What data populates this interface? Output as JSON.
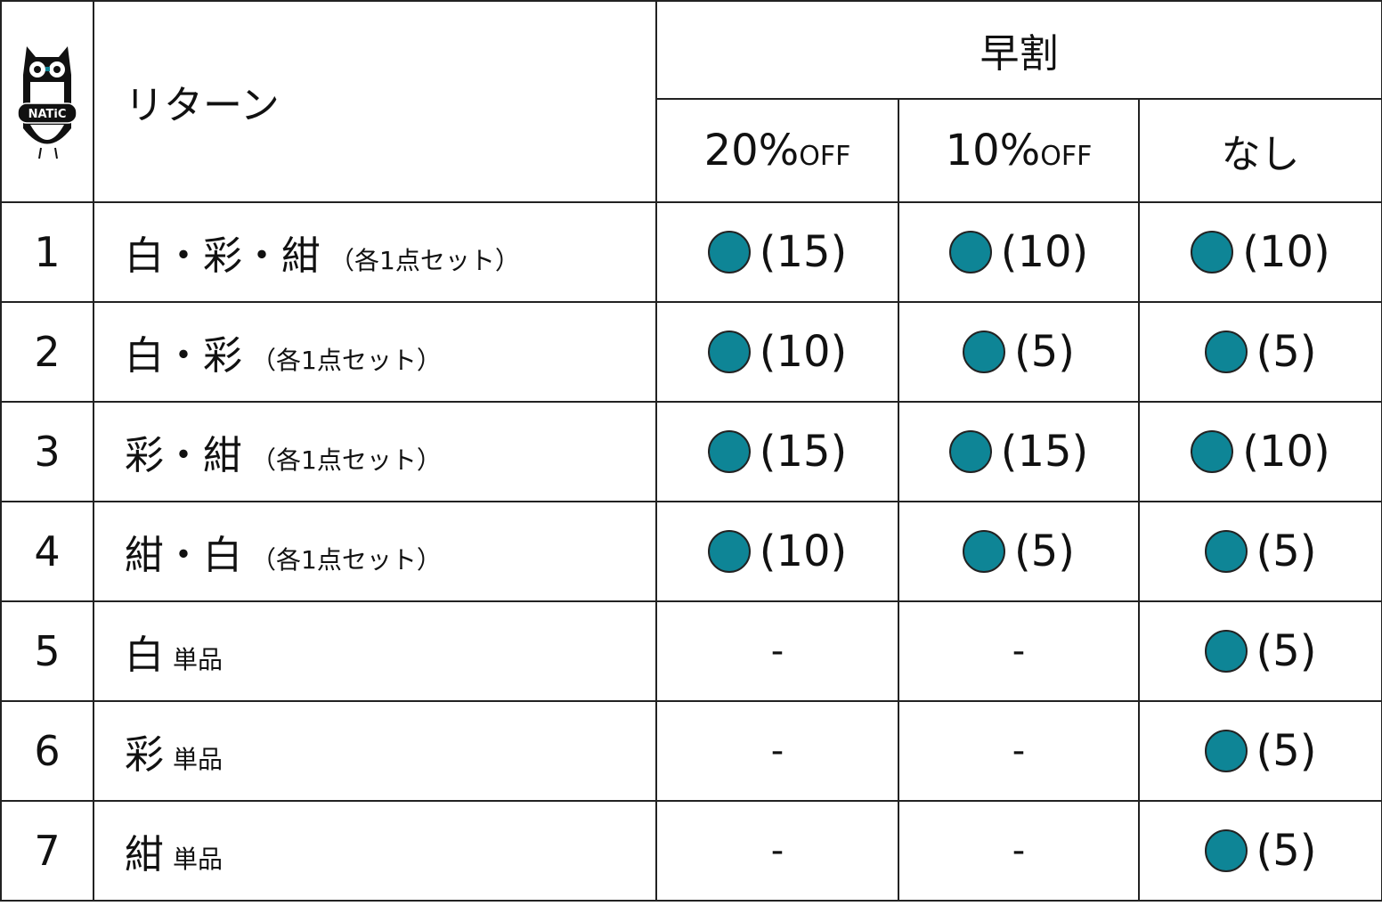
{
  "logo": {
    "text": "NATiC",
    "icon": "owl-logo"
  },
  "header": {
    "return_label": "リターン",
    "group_label": "早割",
    "columns": [
      {
        "pct": "20%",
        "suffix": "OFF"
      },
      {
        "pct": "10%",
        "suffix": "OFF"
      },
      {
        "pct": "なし",
        "suffix": ""
      }
    ]
  },
  "colors": {
    "dot": "#0e8596",
    "border": "#222222"
  },
  "rows": [
    {
      "num": "1",
      "name": "白・彩・紺",
      "note": "（各1点セット）",
      "cells": [
        "(15)",
        "(10)",
        "(10)"
      ]
    },
    {
      "num": "2",
      "name": "白・彩",
      "note": "（各1点セット）",
      "cells": [
        "(10)",
        "(5)",
        "(5)"
      ]
    },
    {
      "num": "3",
      "name": "彩・紺",
      "note": "（各1点セット）",
      "cells": [
        "(15)",
        "(15)",
        "(10)"
      ]
    },
    {
      "num": "4",
      "name": "紺・白",
      "note": "（各1点セット）",
      "cells": [
        "(10)",
        "(5)",
        "(5)"
      ]
    },
    {
      "num": "5",
      "name": "白",
      "note": "単品",
      "cells": [
        "-",
        "-",
        "(5)"
      ]
    },
    {
      "num": "6",
      "name": "彩",
      "note": "単品",
      "cells": [
        "-",
        "-",
        "(5)"
      ]
    },
    {
      "num": "7",
      "name": "紺",
      "note": "単品",
      "cells": [
        "-",
        "-",
        "(5)"
      ]
    }
  ]
}
